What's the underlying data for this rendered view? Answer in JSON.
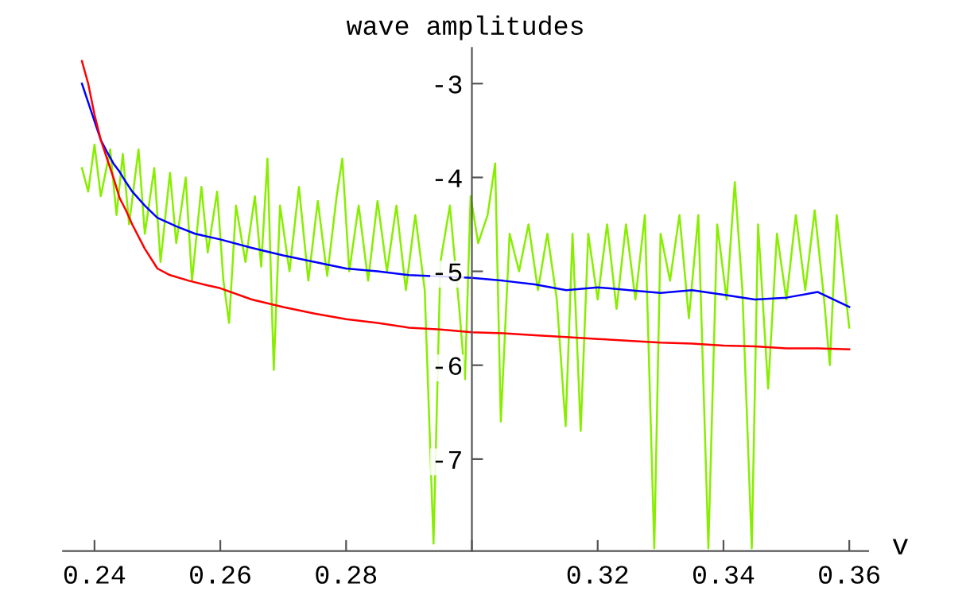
{
  "chart_data": {
    "type": "line",
    "title": "wave amplitudes",
    "xlabel": "v",
    "xlim": [
      0.235,
      0.363
    ],
    "ylim": [
      -7.98,
      -2.62
    ],
    "xticks": [
      0.24,
      0.26,
      0.28,
      {
        "value": 0.3,
        "label": null
      },
      0.32,
      0.34,
      0.36
    ],
    "yticks": [
      -3,
      -4,
      -5,
      -6,
      -7
    ],
    "grid": false,
    "legend": false,
    "series": [
      {
        "color": "#88ee00",
        "x": [
          0.238,
          0.239,
          0.24,
          0.241,
          0.2425,
          0.2435,
          0.2445,
          0.2455,
          0.247,
          0.248,
          0.2495,
          0.2505,
          0.252,
          0.253,
          0.2545,
          0.2555,
          0.257,
          0.258,
          0.2595,
          0.2605,
          0.2614,
          0.2625,
          0.264,
          0.2655,
          0.2665,
          0.2675,
          0.2685,
          0.2695,
          0.271,
          0.2725,
          0.274,
          0.2755,
          0.277,
          0.2785,
          0.2794,
          0.2805,
          0.282,
          0.2835,
          0.285,
          0.2865,
          0.288,
          0.2895,
          0.291,
          0.2925,
          0.2939,
          0.295,
          0.2965,
          0.298,
          0.2989,
          0.2998,
          0.301,
          0.3025,
          0.3037,
          0.3046,
          0.306,
          0.3075,
          0.309,
          0.3105,
          0.312,
          0.3135,
          0.3149,
          0.316,
          0.3173,
          0.3185,
          0.32,
          0.3215,
          0.323,
          0.3245,
          0.326,
          0.3275,
          0.329,
          0.33,
          0.3315,
          0.333,
          0.3345,
          0.336,
          0.3376,
          0.339,
          0.3405,
          0.3418,
          0.343,
          0.3445,
          0.3455,
          0.3471,
          0.3485,
          0.35,
          0.3515,
          0.353,
          0.3545,
          0.356,
          0.3569,
          0.358,
          0.36
        ],
        "values": [
          -3.9,
          -4.15,
          -3.65,
          -4.2,
          -3.7,
          -4.4,
          -3.75,
          -4.5,
          -3.7,
          -4.6,
          -3.9,
          -4.9,
          -3.95,
          -4.7,
          -4.0,
          -5.1,
          -4.1,
          -4.8,
          -4.15,
          -5.1,
          -5.55,
          -4.3,
          -4.9,
          -4.2,
          -4.95,
          -3.8,
          -6.05,
          -4.3,
          -5.0,
          -4.1,
          -5.1,
          -4.25,
          -5.05,
          -4.2,
          -3.8,
          -5.0,
          -4.3,
          -5.1,
          -4.25,
          -5.0,
          -4.3,
          -5.2,
          -4.4,
          -5.2,
          -7.9,
          -4.9,
          -4.3,
          -5.4,
          -6.15,
          -4.2,
          -4.7,
          -4.4,
          -3.85,
          -6.6,
          -4.6,
          -5.0,
          -4.5,
          -5.2,
          -4.6,
          -5.3,
          -6.65,
          -4.6,
          -6.7,
          -4.6,
          -5.3,
          -4.5,
          -5.4,
          -4.5,
          -5.3,
          -4.4,
          -7.95,
          -4.6,
          -5.1,
          -4.4,
          -5.5,
          -4.4,
          -7.95,
          -4.5,
          -5.3,
          -4.05,
          -5.2,
          -7.95,
          -4.5,
          -6.25,
          -4.6,
          -5.3,
          -4.4,
          -5.2,
          -4.35,
          -5.3,
          -6.0,
          -4.4,
          -5.6
        ]
      },
      {
        "color": "#0000ff",
        "x": [
          0.238,
          0.239,
          0.24,
          0.241,
          0.242,
          0.243,
          0.244,
          0.245,
          0.246,
          0.248,
          0.25,
          0.253,
          0.256,
          0.26,
          0.265,
          0.27,
          0.275,
          0.28,
          0.285,
          0.29,
          0.3,
          0.305,
          0.31,
          0.315,
          0.32,
          0.325,
          0.33,
          0.335,
          0.34,
          0.345,
          0.35,
          0.355,
          0.36
        ],
        "values": [
          -3.0,
          -3.2,
          -3.4,
          -3.6,
          -3.73,
          -3.85,
          -3.94,
          -4.05,
          -4.15,
          -4.3,
          -4.43,
          -4.52,
          -4.6,
          -4.66,
          -4.75,
          -4.83,
          -4.9,
          -4.97,
          -5.0,
          -5.04,
          -5.07,
          -5.1,
          -5.14,
          -5.2,
          -5.17,
          -5.2,
          -5.23,
          -5.2,
          -5.25,
          -5.3,
          -5.28,
          -5.22,
          -5.38
        ]
      },
      {
        "color": "#ff0000",
        "x": [
          0.238,
          0.239,
          0.24,
          0.241,
          0.242,
          0.243,
          0.244,
          0.245,
          0.246,
          0.248,
          0.25,
          0.252,
          0.255,
          0.258,
          0.26,
          0.265,
          0.27,
          0.275,
          0.28,
          0.285,
          0.29,
          0.295,
          0.3,
          0.305,
          0.31,
          0.315,
          0.32,
          0.325,
          0.33,
          0.335,
          0.34,
          0.345,
          0.35,
          0.355,
          0.36
        ],
        "values": [
          -2.76,
          -3.0,
          -3.33,
          -3.6,
          -3.8,
          -4.0,
          -4.22,
          -4.35,
          -4.5,
          -4.76,
          -4.97,
          -5.04,
          -5.1,
          -5.15,
          -5.18,
          -5.3,
          -5.38,
          -5.45,
          -5.51,
          -5.55,
          -5.6,
          -5.62,
          -5.65,
          -5.66,
          -5.68,
          -5.7,
          -5.72,
          -5.74,
          -5.76,
          -5.77,
          -5.79,
          -5.8,
          -5.82,
          -5.82,
          -5.83
        ]
      }
    ]
  }
}
